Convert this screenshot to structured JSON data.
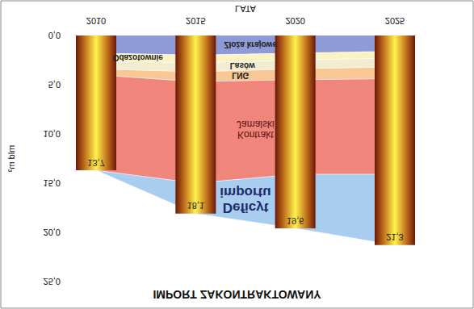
{
  "chart_data": {
    "type": "area",
    "title": "IMPORT ZAKONTRAKTOWANY",
    "x_label": "LATA",
    "y_label": "mld m³",
    "categories": [
      "2010",
      "2015",
      "2020",
      "2025"
    ],
    "stacked": true,
    "grid": false,
    "ylim": [
      0,
      25
    ],
    "yticks": [
      {
        "value": 0,
        "label": "0,0"
      },
      {
        "value": 5,
        "label": "5,0"
      },
      {
        "value": 10,
        "label": "10,0"
      },
      {
        "value": 15,
        "label": "15,0"
      },
      {
        "value": 20,
        "label": "20,0"
      },
      {
        "value": 25,
        "label": "25,0"
      }
    ],
    "series": [
      {
        "name": "Złoża krajowe",
        "type": "area",
        "color": "#8e9bd6",
        "values": [
          1.8,
          2.0,
          1.8,
          1.6
        ]
      },
      {
        "name": "Odazotownie",
        "type": "area",
        "color": "#fbf3c4",
        "values": [
          0.8,
          0.8,
          0.7,
          0.7
        ]
      },
      {
        "name": "Lasów",
        "type": "area",
        "color": "#f3ecd0",
        "values": [
          0.8,
          0.9,
          0.9,
          0.9
        ]
      },
      {
        "name": "LNG",
        "type": "area",
        "color": "#f7c794",
        "values": [
          0.6,
          1.0,
          1.1,
          1.2
        ]
      },
      {
        "name": "Kontrakt\nJamalski",
        "type": "area",
        "color": "#f0857c",
        "values": [
          9.7,
          10.3,
          9.6,
          9.7
        ]
      },
      {
        "name": "Deficyt\nimportu",
        "type": "area",
        "color": "#a9cdef",
        "values": [
          0,
          3.1,
          5.5,
          7.2
        ]
      }
    ],
    "columns": {
      "type": "bar",
      "values": [
        13.7,
        18.1,
        19.6,
        21.3
      ],
      "value_labels": [
        "13,7",
        "18,1",
        "19,6",
        "21,3"
      ],
      "data_labels": true
    }
  }
}
